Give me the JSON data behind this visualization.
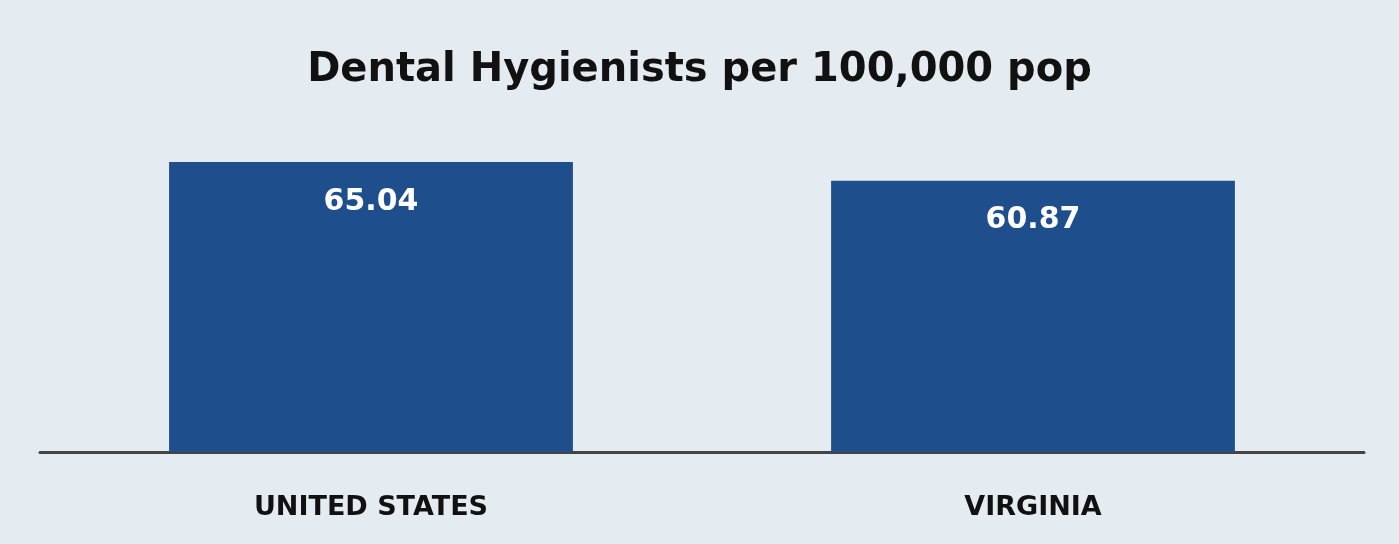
{
  "chart_data": {
    "type": "bar",
    "title": "Dental Hygienists per 100,000 pop",
    "categories": [
      "UNITED STATES",
      "VIRGINIA"
    ],
    "values": [
      65.04,
      60.87
    ],
    "color": "#1f4e8c",
    "data_labels": true
  }
}
